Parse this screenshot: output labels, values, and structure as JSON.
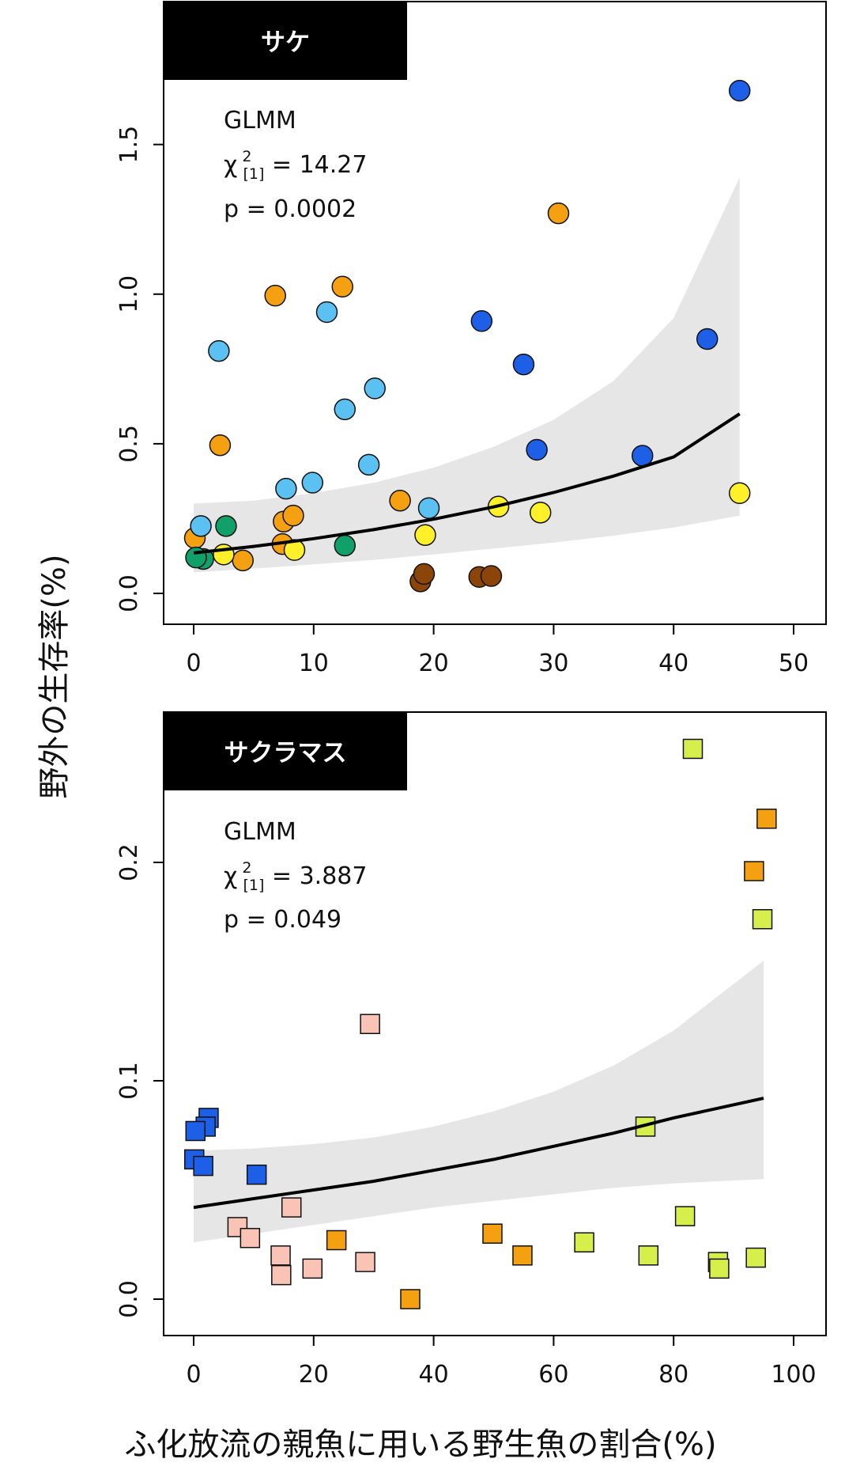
{
  "ylabel": "野外の生存率(%)",
  "xlabel": "ふ化放流の親魚に用いる野生魚の割合(%)",
  "chart_data": [
    {
      "type": "scatter",
      "title": "サケ",
      "xlim": [
        0,
        50
      ],
      "ylim": [
        0,
        1.7
      ],
      "xticks": [
        "0",
        "10",
        "20",
        "30",
        "40",
        "50"
      ],
      "yticks": [
        "0.0",
        "0.5",
        "1.0",
        "1.5"
      ],
      "stats": {
        "model": "GLMM",
        "chi_prefix": "χ",
        "chi_sup": "2",
        "chi_sub": "[1]",
        "chi_value": " = 14.27",
        "p": "p = 0.0002"
      },
      "marker": "circle",
      "fit": {
        "x": [
          0,
          5,
          10,
          15,
          20,
          25,
          30,
          35,
          40,
          45.5
        ],
        "y": [
          0.135,
          0.157,
          0.183,
          0.213,
          0.248,
          0.289,
          0.337,
          0.392,
          0.456,
          0.6
        ],
        "lower": [
          0.07,
          0.083,
          0.097,
          0.112,
          0.13,
          0.15,
          0.17,
          0.193,
          0.22,
          0.26
        ],
        "upper": [
          0.3,
          0.31,
          0.335,
          0.37,
          0.42,
          0.49,
          0.58,
          0.71,
          0.92,
          1.39
        ]
      },
      "series": [
        {
          "color": "#1e5fe8",
          "points": [
            [
              45.5,
              1.68
            ],
            [
              24.0,
              0.91
            ],
            [
              27.5,
              0.765
            ],
            [
              42.8,
              0.85
            ],
            [
              28.6,
              0.48
            ],
            [
              37.4,
              0.46
            ]
          ]
        },
        {
          "color": "#f5a010",
          "points": [
            [
              30.4,
              1.27
            ],
            [
              12.4,
              1.025
            ],
            [
              6.8,
              0.995
            ],
            [
              2.2,
              0.495
            ],
            [
              17.2,
              0.31
            ],
            [
              7.5,
              0.24
            ],
            [
              8.3,
              0.26
            ],
            [
              7.4,
              0.165
            ],
            [
              0.1,
              0.185
            ],
            [
              4.1,
              0.11
            ]
          ]
        },
        {
          "color": "#5bc0f2",
          "points": [
            [
              2.1,
              0.81
            ],
            [
              11.1,
              0.94
            ],
            [
              12.6,
              0.615
            ],
            [
              15.1,
              0.685
            ],
            [
              14.6,
              0.43
            ],
            [
              9.9,
              0.37
            ],
            [
              7.7,
              0.35
            ],
            [
              19.6,
              0.285
            ],
            [
              0.6,
              0.225
            ]
          ]
        },
        {
          "color": "#fff02a",
          "points": [
            [
              45.5,
              0.335
            ],
            [
              25.4,
              0.29
            ],
            [
              28.9,
              0.27
            ],
            [
              19.3,
              0.195
            ],
            [
              8.4,
              0.145
            ],
            [
              2.5,
              0.13
            ]
          ]
        },
        {
          "color": "#12a06a",
          "points": [
            [
              2.7,
              0.225
            ],
            [
              12.6,
              0.16
            ],
            [
              0.8,
              0.115
            ],
            [
              0.2,
              0.12
            ]
          ]
        },
        {
          "color": "#8b4508",
          "points": [
            [
              18.9,
              0.04
            ],
            [
              19.2,
              0.065
            ],
            [
              23.8,
              0.055
            ],
            [
              24.8,
              0.058
            ]
          ]
        }
      ]
    },
    {
      "type": "scatter",
      "title": "サクラマス",
      "xlim": [
        0,
        100
      ],
      "ylim": [
        0,
        0.25
      ],
      "xticks": [
        "0",
        "20",
        "40",
        "60",
        "80",
        "100"
      ],
      "yticks": [
        "0.0",
        "0.1",
        "0.2"
      ],
      "stats": {
        "model": "GLMM",
        "chi_prefix": "χ",
        "chi_sup": "2",
        "chi_sub": "[1]",
        "chi_value": " = 3.887",
        "p": "p = 0.049"
      },
      "marker": "square",
      "fit": {
        "x": [
          0,
          10,
          20,
          30,
          40,
          50,
          60,
          70,
          80,
          95
        ],
        "y": [
          0.042,
          0.046,
          0.05,
          0.054,
          0.059,
          0.064,
          0.07,
          0.076,
          0.083,
          0.092
        ],
        "lower": [
          0.026,
          0.03,
          0.034,
          0.038,
          0.042,
          0.045,
          0.048,
          0.051,
          0.053,
          0.055
        ],
        "upper": [
          0.068,
          0.069,
          0.071,
          0.074,
          0.079,
          0.086,
          0.095,
          0.107,
          0.123,
          0.155
        ]
      },
      "series": [
        {
          "color": "#1e5fe8",
          "points": [
            [
              2.5,
              0.083
            ],
            [
              2.0,
              0.079
            ],
            [
              0.3,
              0.077
            ],
            [
              0.1,
              0.064
            ],
            [
              1.6,
              0.061
            ],
            [
              10.5,
              0.057
            ]
          ]
        },
        {
          "color": "#f9c4b6",
          "points": [
            [
              29.4,
              0.126
            ],
            [
              16.3,
              0.042
            ],
            [
              7.3,
              0.033
            ],
            [
              9.4,
              0.028
            ],
            [
              14.5,
              0.02
            ],
            [
              14.6,
              0.011
            ],
            [
              19.8,
              0.014
            ],
            [
              28.6,
              0.017
            ]
          ]
        },
        {
          "color": "#f5a010",
          "points": [
            [
              95.5,
              0.22
            ],
            [
              93.4,
              0.196
            ],
            [
              23.8,
              0.027
            ],
            [
              49.8,
              0.03
            ],
            [
              54.8,
              0.02
            ],
            [
              36.1,
              0.0
            ]
          ]
        },
        {
          "color": "#d7ef4a",
          "points": [
            [
              83.2,
              0.252
            ],
            [
              94.8,
              0.174
            ],
            [
              75.3,
              0.079
            ],
            [
              81.9,
              0.038
            ],
            [
              65.1,
              0.026
            ],
            [
              75.8,
              0.02
            ],
            [
              87.4,
              0.017
            ],
            [
              87.6,
              0.014
            ],
            [
              93.7,
              0.019
            ]
          ]
        }
      ]
    }
  ]
}
